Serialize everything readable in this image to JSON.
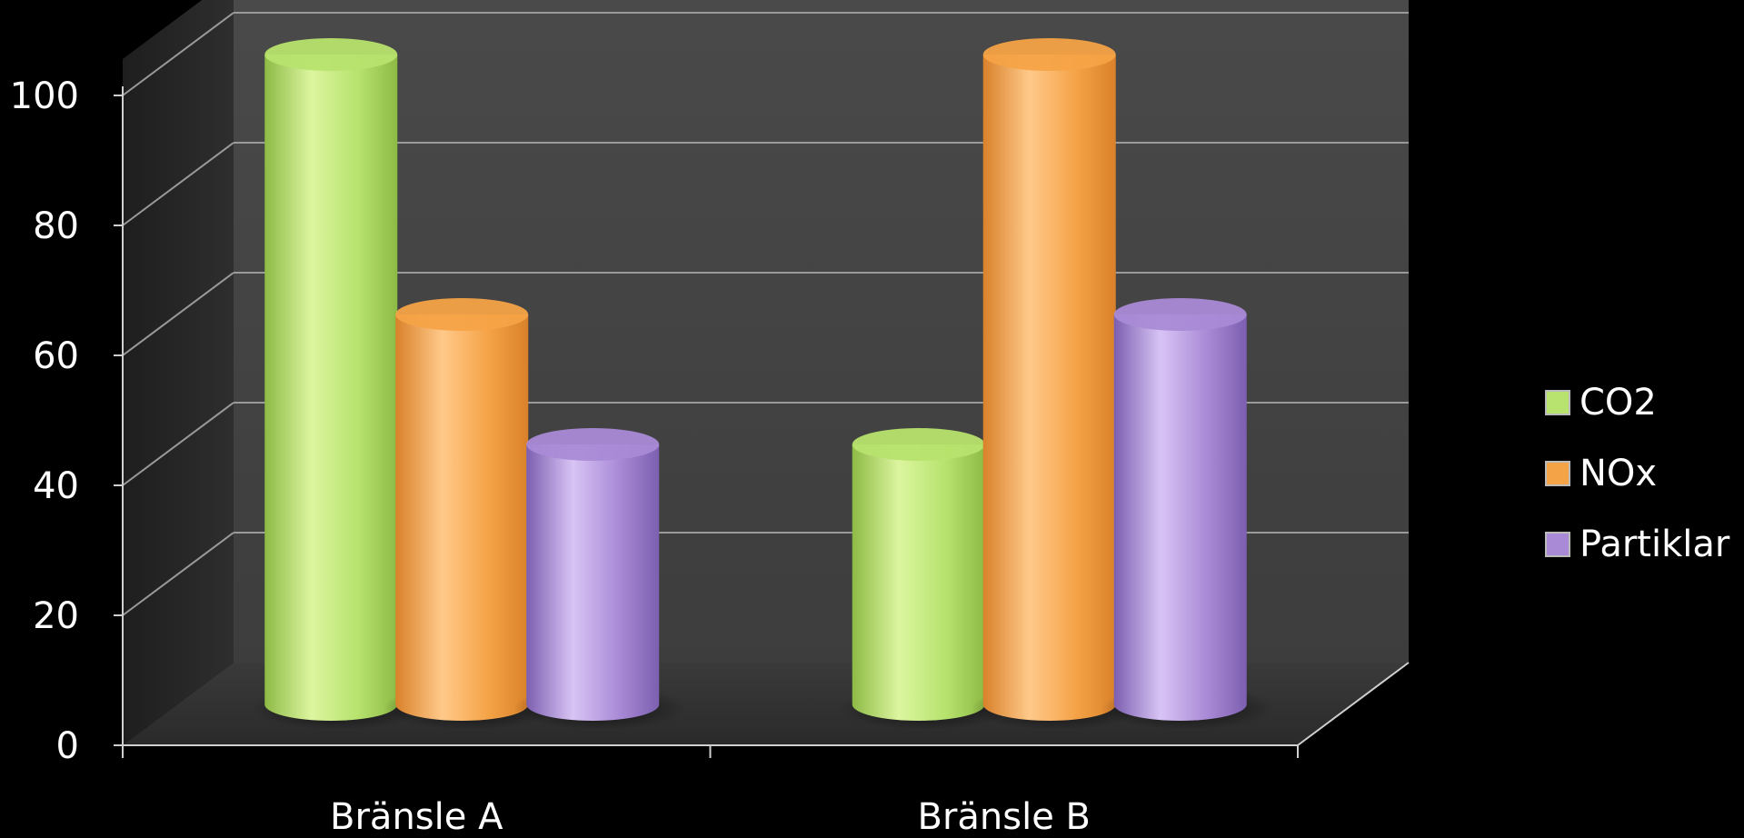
{
  "chart_data": {
    "type": "bar",
    "categories": [
      "Bränsle A",
      "Bränsle B"
    ],
    "series": [
      {
        "name": "CO2",
        "values": [
          100,
          40
        ],
        "color": "#b7e36e"
      },
      {
        "name": "NOx",
        "values": [
          60,
          100
        ],
        "color": "#f5a347"
      },
      {
        "name": "Partiklar",
        "values": [
          40,
          60
        ],
        "color": "#a98ad6"
      }
    ],
    "ylim": [
      0,
      100
    ],
    "yticks": [
      "0",
      "20",
      "40",
      "60",
      "80",
      "100"
    ],
    "grid": true,
    "legend_position": "right",
    "title": "",
    "xlabel": "",
    "ylabel": ""
  }
}
